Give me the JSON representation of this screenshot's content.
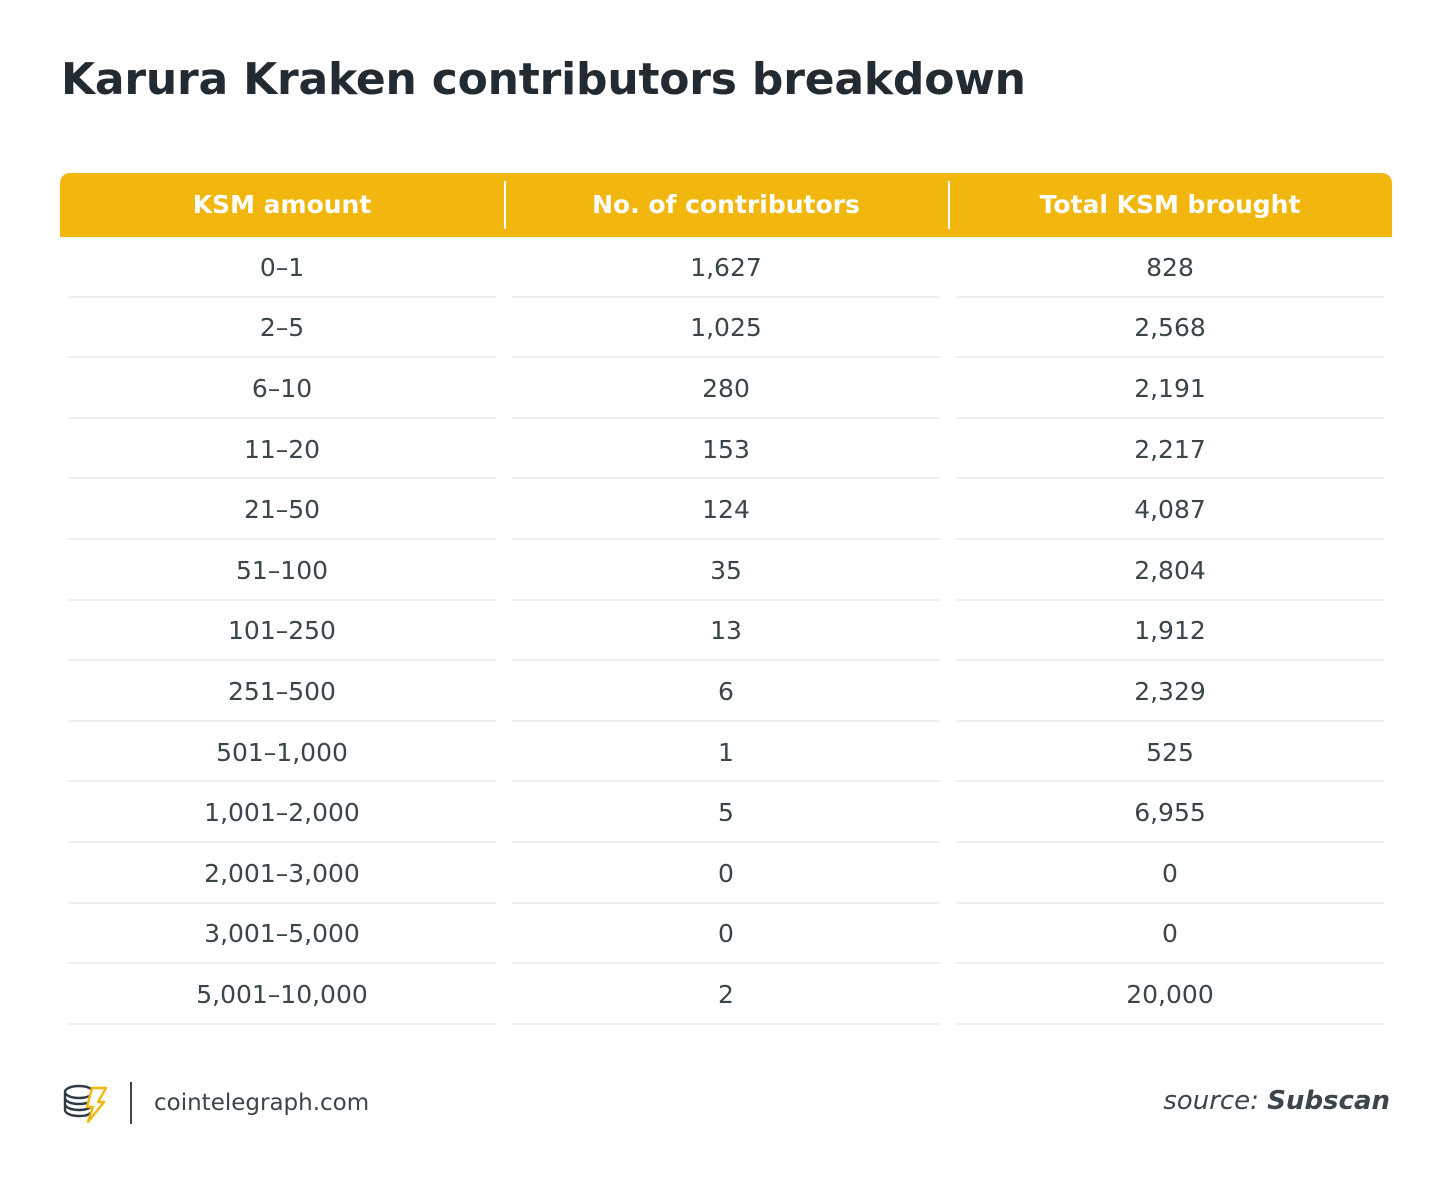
{
  "title": "Karura Kraken contributors breakdown",
  "chart_data": {
    "type": "table",
    "title": "Karura Kraken contributors breakdown",
    "columns": [
      "KSM amount",
      "No. of contributors",
      "Total KSM brought"
    ],
    "rows": [
      [
        "0–1",
        "1,627",
        "828"
      ],
      [
        "2–5",
        "1,025",
        "2,568"
      ],
      [
        "6–10",
        "280",
        "2,191"
      ],
      [
        "11–20",
        "153",
        "2,217"
      ],
      [
        "21–50",
        "124",
        "4,087"
      ],
      [
        "51–100",
        "35",
        "2,804"
      ],
      [
        "101–250",
        "13",
        "1,912"
      ],
      [
        "251–500",
        "6",
        "2,329"
      ],
      [
        "501–1,000",
        "1",
        "525"
      ],
      [
        "1,001–2,000",
        "5",
        "6,955"
      ],
      [
        "2,001–3,000",
        "0",
        "0"
      ],
      [
        "3,001–5,000",
        "0",
        "0"
      ],
      [
        "5,001–10,000",
        "2",
        "20,000"
      ]
    ]
  },
  "footer": {
    "site": "cointelegraph.com",
    "logo_icon": "cointelegraph-logo-icon"
  },
  "source": {
    "label": "source:",
    "name": "Subscan"
  },
  "colors": {
    "header_bg": "#f2b70f",
    "header_text": "#ffffff",
    "body_text": "#3a454c",
    "title_text": "#222b31"
  }
}
